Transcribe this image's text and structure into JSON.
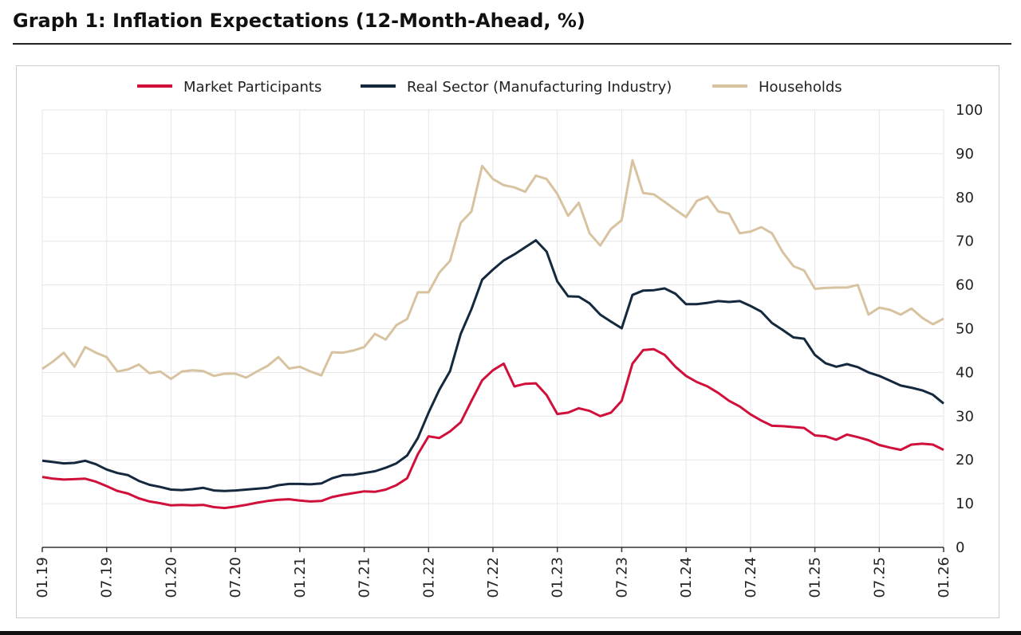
{
  "title": "Graph 1: Inflation Expectations (12-Month-Ahead, %)",
  "chart_data": {
    "type": "line",
    "title": "Graph 1: Inflation Expectations (12-Month-Ahead, %)",
    "xlabel": "",
    "ylabel": "",
    "x_start": "01.19",
    "x_end": "01.26",
    "x_frequency": "monthly",
    "x_tick_labels": [
      "01.19",
      "07.19",
      "01.20",
      "07.20",
      "01.21",
      "07.21",
      "01.22",
      "07.22",
      "01.23",
      "07.23",
      "01.24",
      "07.24",
      "01.25",
      "07.25",
      "01.26"
    ],
    "y_tick_labels": [
      "0",
      "10",
      "20",
      "30",
      "40",
      "50",
      "60",
      "70",
      "80",
      "90",
      "100"
    ],
    "ylim": [
      0,
      100
    ],
    "y_axis_side": "right",
    "grid": true,
    "legend_placement": "top",
    "series": [
      {
        "name": "Market Participants",
        "color": "#d0103a",
        "values": [
          16.1,
          15.7,
          15.5,
          15.6,
          15.7,
          15.0,
          14.0,
          12.9,
          12.3,
          11.2,
          10.5,
          10.1,
          9.6,
          9.7,
          9.6,
          9.7,
          9.2,
          9.0,
          9.3,
          9.7,
          10.2,
          10.6,
          10.9,
          11.0,
          10.7,
          10.5,
          10.6,
          11.5,
          12.0,
          12.4,
          12.8,
          12.7,
          13.2,
          14.2,
          15.8,
          21.3,
          25.4,
          25.0,
          26.5,
          28.6,
          33.5,
          38.2,
          40.5,
          42.0,
          36.8,
          37.4,
          37.5,
          34.8,
          30.5,
          30.8,
          31.8,
          31.2,
          30.0,
          30.8,
          33.5,
          42.0,
          45.1,
          45.3,
          44.0,
          41.3,
          39.2,
          37.8,
          36.8,
          35.3,
          33.5,
          32.2,
          30.4,
          29.0,
          27.8,
          27.7,
          27.5,
          27.3,
          25.6,
          25.4,
          24.6,
          25.8,
          25.2,
          24.5,
          23.4,
          22.8,
          22.3,
          23.5,
          23.7,
          23.5,
          22.3
        ]
      },
      {
        "name": "Real Sector (Manufacturing Industry)",
        "color": "#14283e",
        "values": [
          19.8,
          19.5,
          19.2,
          19.3,
          19.8,
          19.0,
          17.8,
          17.0,
          16.5,
          15.2,
          14.3,
          13.8,
          13.2,
          13.1,
          13.3,
          13.6,
          13.0,
          12.9,
          13.0,
          13.2,
          13.4,
          13.6,
          14.2,
          14.5,
          14.5,
          14.4,
          14.6,
          15.8,
          16.5,
          16.6,
          17.0,
          17.4,
          18.2,
          19.2,
          21.0,
          25.0,
          30.8,
          36.0,
          40.3,
          48.8,
          54.5,
          61.2,
          63.5,
          65.6,
          67.0,
          68.6,
          70.2,
          67.6,
          60.8,
          57.4,
          57.3,
          55.8,
          53.2,
          51.6,
          50.1,
          57.7,
          58.7,
          58.8,
          59.2,
          58.0,
          55.6,
          55.6,
          55.9,
          56.3,
          56.1,
          56.3,
          55.2,
          53.9,
          51.3,
          49.7,
          48.0,
          47.7,
          44.0,
          42.1,
          41.3,
          41.9,
          41.2,
          40.0,
          39.2,
          38.1,
          37.0,
          36.5,
          35.9,
          34.9,
          32.9
        ]
      },
      {
        "name": "Households",
        "color": "#d8c3a0",
        "values": [
          40.8,
          42.5,
          44.5,
          41.3,
          45.8,
          44.5,
          43.5,
          40.2,
          40.7,
          41.8,
          39.8,
          40.2,
          38.5,
          40.2,
          40.5,
          40.3,
          39.2,
          39.7,
          39.7,
          38.8,
          40.2,
          41.5,
          43.5,
          40.9,
          41.3,
          40.2,
          39.3,
          44.6,
          44.5,
          45.0,
          45.8,
          48.8,
          47.5,
          50.8,
          52.2,
          58.3,
          58.3,
          62.8,
          65.5,
          74.2,
          76.8,
          87.2,
          84.2,
          82.8,
          82.3,
          81.3,
          85.0,
          84.2,
          80.8,
          75.8,
          78.8,
          71.8,
          69.0,
          72.8,
          74.8,
          88.5,
          81.0,
          80.7,
          79.0,
          77.2,
          75.5,
          79.2,
          80.2,
          76.8,
          76.3,
          71.8,
          72.2,
          73.2,
          71.8,
          67.5,
          64.3,
          63.3,
          59.1,
          59.3,
          59.4,
          59.4,
          60.0,
          53.2,
          54.8,
          54.3,
          53.2,
          54.6,
          52.5,
          51.0,
          52.3
        ]
      }
    ]
  }
}
